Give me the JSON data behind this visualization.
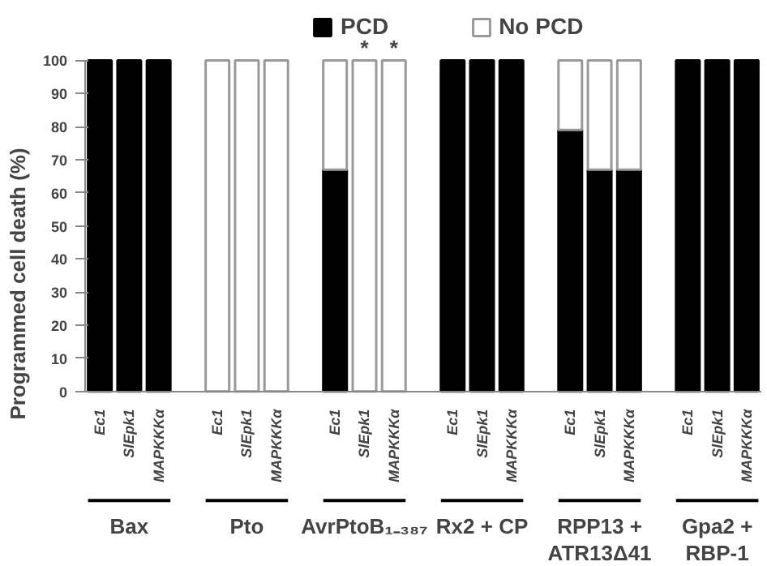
{
  "chart_data": {
    "type": "bar",
    "stacked": true,
    "ylabel": "Programmed cell death (%)",
    "categories": [
      "Ec1",
      "SlEpk1",
      "MAPKKKα",
      null,
      "Ec1",
      "SlEpk1",
      "MAPKKKα",
      null,
      "Ec1",
      "SlEpk1",
      "MAPKKKα",
      null,
      "Ec1",
      "SlEpk1",
      "MAPKKKα",
      null,
      "Ec1",
      "SlEpk1",
      "MAPKKKα",
      null,
      "Ec1",
      "SlEpk1",
      "MAPKKKα"
    ],
    "series": [
      {
        "name": "PCD",
        "color": "#000000",
        "values": [
          100,
          100,
          100,
          null,
          0,
          0,
          0,
          null,
          67,
          0,
          0,
          null,
          100,
          100,
          100,
          null,
          79,
          67,
          67,
          null,
          100,
          100,
          100
        ]
      },
      {
        "name": "No PCD",
        "color": "#ffffff",
        "values": [
          0,
          0,
          0,
          null,
          100,
          100,
          100,
          null,
          33,
          100,
          100,
          null,
          0,
          0,
          0,
          null,
          21,
          33,
          33,
          null,
          0,
          0,
          0
        ],
        "value_labels": [
          null,
          null,
          null,
          null,
          null,
          null,
          null,
          null,
          null,
          "*",
          "*",
          null,
          null,
          null,
          null,
          null,
          null,
          null,
          null,
          null,
          null,
          null,
          null
        ]
      }
    ],
    "annotations": [
      "Bax",
      "Pto",
      "AvrPtoB₁₋₃₈₇",
      "Rx2 + CP",
      "RPP13 +\nATR13Δ41",
      "Gpa2 +\nRBP-1"
    ],
    "ylim": [
      0,
      100
    ],
    "yticks": [
      0,
      10,
      20,
      30,
      40,
      50,
      60,
      70,
      80,
      90,
      100
    ],
    "grid": false,
    "legend": "top"
  }
}
